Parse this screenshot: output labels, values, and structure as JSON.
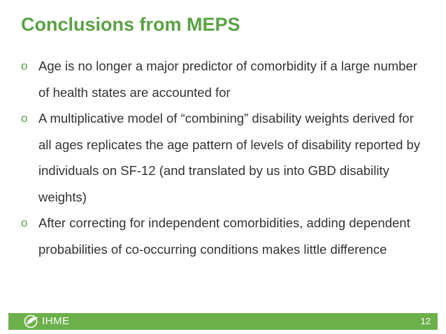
{
  "slide": {
    "title": "Conclusions from MEPS",
    "bullet_marker": "o",
    "bullets": [
      "Age is no longer a major predictor of comorbidity if a large number of health states are accounted for",
      "A multiplicative model of “combining” disability weights derived for all ages replicates the age pattern of levels of disability reported by individuals on SF-12 (and translated by us into GBD disability weights)",
      "After correcting for independent comorbidities, adding dependent probabilities of co-occurring conditions makes little difference"
    ]
  },
  "footer": {
    "brand": "IHME",
    "page_number": "12",
    "logo_icon": "ihme-leaf-logo-icon"
  },
  "colors": {
    "accent": "#5aa244",
    "footer_bar": "#6cb04b",
    "body_text": "#333333"
  }
}
